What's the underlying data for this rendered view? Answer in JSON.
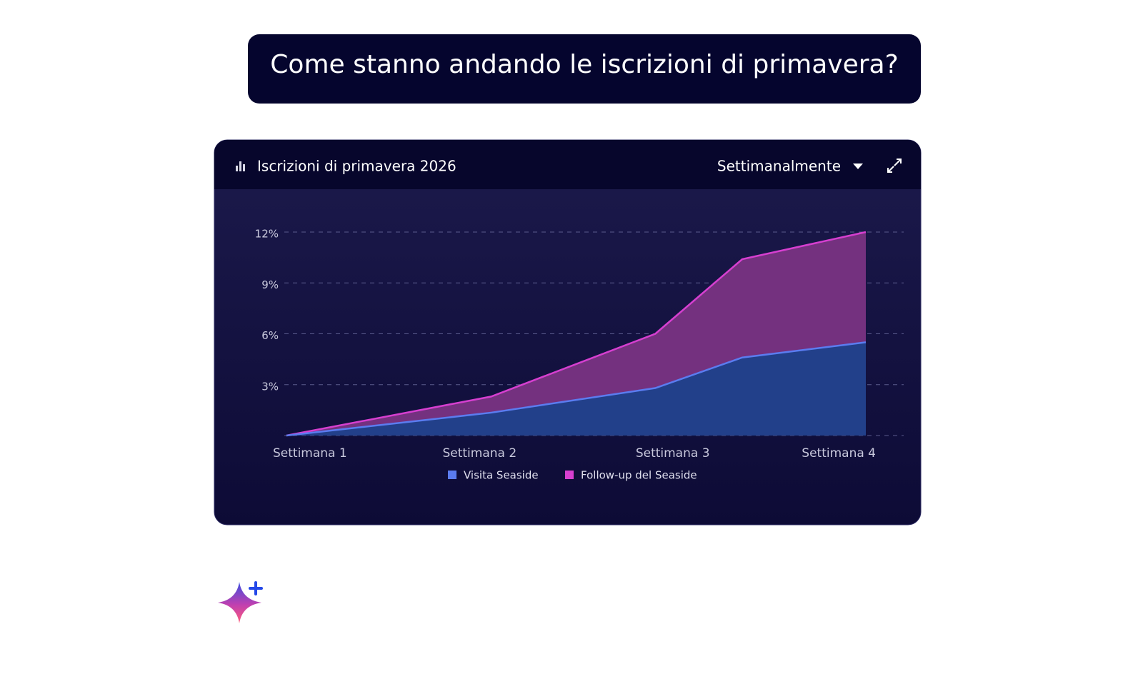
{
  "prompt": "Come stanno andando le iscrizioni di primavera?",
  "period": "Settimanalmente",
  "chart_data": {
    "type": "area",
    "title": "Iscrizioni di primavera 2026",
    "x": [
      1,
      2.06,
      2.91,
      3.36,
      4
    ],
    "xlim": [
      1,
      4
    ],
    "xticks": [
      {
        "value": 1,
        "label": "Settimana 1"
      },
      {
        "value": 2,
        "label": "Settimana 2"
      },
      {
        "value": 3,
        "label": "Settimana 3"
      },
      {
        "value": 4,
        "label": "Settimana 4"
      }
    ],
    "ylim": [
      0,
      12
    ],
    "yticks": [
      {
        "value": 3,
        "label": "3%"
      },
      {
        "value": 6,
        "label": "6%"
      },
      {
        "value": 9,
        "label": "9%"
      },
      {
        "value": 12,
        "label": "12%"
      }
    ],
    "grid": true,
    "legend": "bottom",
    "series": [
      {
        "name": "Visita Seaside",
        "color": "#5b7cf0",
        "fill": "#22408a",
        "values": [
          0,
          1.35,
          2.8,
          4.6,
          5.5
        ]
      },
      {
        "name": "Follow-up del Seaside",
        "color": "#d63fd0",
        "fill": "#74317f",
        "values": [
          0,
          2.3,
          6.0,
          10.4,
          12.0
        ]
      }
    ]
  }
}
